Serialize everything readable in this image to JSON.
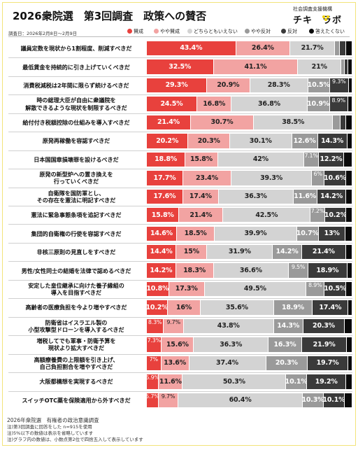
{
  "header": {
    "title": "2026衆院選　第3回調査　政策への賛否",
    "survey_date": "調査日：2026年2月8日〜2月9日",
    "brand_top": "社会調査支援機構",
    "brand_logo": "チキ　ラボ"
  },
  "colors": {
    "brand_dots": "#f0d000",
    "background": "#ffffff"
  },
  "chart_data": {
    "type": "bar",
    "orientation": "horizontal",
    "stacked": true,
    "xlim": [
      0,
      100
    ],
    "legend_position": "top",
    "series": [
      {
        "name": "賛成",
        "color": "#e8413d"
      },
      {
        "name": "やや賛成",
        "color": "#f2a3a2"
      },
      {
        "name": "どちらともいえない",
        "color": "#d3d3d3"
      },
      {
        "name": "やや反対",
        "color": "#9a9a9a"
      },
      {
        "name": "反対",
        "color": "#3a3a3a"
      },
      {
        "name": "答えたくない",
        "color": "#0a0a0a"
      }
    ],
    "categories": [
      {
        "label": "議員定数を現状から1割程度、削減すべきだ",
        "values": [
          43.4,
          26.4,
          21.7,
          2.5,
          2.8,
          3.2
        ],
        "shown": [
          "43.4%",
          "26.4%",
          "21.7%",
          "",
          "",
          ""
        ]
      },
      {
        "label": "最低賃金を持続的に引き上げていくべきだ",
        "values": [
          32.5,
          41.1,
          21,
          1.8,
          1.6,
          2
        ],
        "shown": [
          "32.5%",
          "41.1%",
          "21%",
          "",
          "",
          ""
        ]
      },
      {
        "label": "消費税減税は2年間に限らず続けるべきだ",
        "values": [
          29.3,
          20.9,
          28.3,
          10.5,
          9.3,
          1.7
        ],
        "shown": [
          "29.3%",
          "20.9%",
          "28.3%",
          "10.5%",
          "9.3%",
          ""
        ]
      },
      {
        "label": "時の総理大臣が自由に衆議院を\n解散できるような現状を制限するべきだ",
        "values": [
          24.5,
          16.8,
          36.8,
          10.9,
          8.9,
          2.1
        ],
        "shown": [
          "24.5%",
          "16.8%",
          "36.8%",
          "10.9%",
          "8.9%",
          ""
        ]
      },
      {
        "label": "給付付き税額控除の仕組みを導入すべきだ",
        "values": [
          21.4,
          30.7,
          38.5,
          3.6,
          2.8,
          3
        ],
        "shown": [
          "21.4%",
          "30.7%",
          "38.5%",
          "",
          "",
          ""
        ]
      },
      {
        "label": "原発再稼働を容認すべきだ",
        "values": [
          20.2,
          20.3,
          30.1,
          12.6,
          14.3,
          2.5
        ],
        "shown": [
          "20.2%",
          "20.3%",
          "30.1%",
          "12.6%",
          "14.3%",
          ""
        ]
      },
      {
        "label": "日本国国章損壊罪を設けるべきだ",
        "values": [
          18.8,
          15.8,
          42,
          7.1,
          12.2,
          4.1
        ],
        "shown": [
          "18.8%",
          "15.8%",
          "42%",
          "7.1%",
          "12.2%",
          ""
        ]
      },
      {
        "label": "原発の新型炉への置き換えを\n行っていくべきだ",
        "values": [
          17.7,
          23.4,
          39.3,
          6,
          10.6,
          3
        ],
        "shown": [
          "17.7%",
          "23.4%",
          "39.3%",
          "6%",
          "10.6%",
          ""
        ]
      },
      {
        "label": "自衛隊を国防軍とし、\nその存在を憲法に明記すべきだ",
        "values": [
          17.6,
          17.4,
          36.3,
          11.6,
          14.2,
          2.9
        ],
        "shown": [
          "17.6%",
          "17.4%",
          "36.3%",
          "11.6%",
          "14.2%",
          ""
        ]
      },
      {
        "label": "憲法に緊急事態条項を追記すべきだ",
        "values": [
          15.8,
          21.4,
          42.5,
          7.2,
          10.2,
          2.9
        ],
        "shown": [
          "15.8%",
          "21.4%",
          "42.5%",
          "7.2%",
          "10.2%",
          ""
        ]
      },
      {
        "label": "集団的自衛権の行使を容認すべきだ",
        "values": [
          14.6,
          18.5,
          39.9,
          10.7,
          13,
          3.3
        ],
        "shown": [
          "14.6%",
          "18.5%",
          "39.9%",
          "10.7%",
          "13%",
          ""
        ]
      },
      {
        "label": "非核三原則の見直しをすべきだ",
        "values": [
          14.4,
          15,
          31.9,
          14.2,
          21.4,
          3.1
        ],
        "shown": [
          "14.4%",
          "15%",
          "31.9%",
          "14.2%",
          "21.4%",
          ""
        ]
      },
      {
        "label": "男性/女性同士の結婚を法律で認めるべきだ",
        "values": [
          14.2,
          18.3,
          36.6,
          9.5,
          18.9,
          2.5
        ],
        "shown": [
          "14.2%",
          "18.3%",
          "36.6%",
          "9.5%",
          "18.9%",
          ""
        ]
      },
      {
        "label": "安定した皇位継承に向けた養子縁組の\n導入を目指すべきだ",
        "values": [
          10.8,
          17.3,
          49.5,
          8.9,
          10.5,
          3
        ],
        "shown": [
          "10.8%",
          "17.3%",
          "49.5%",
          "8.9%",
          "10.5%",
          ""
        ]
      },
      {
        "label": "高齢者の医療負担を今より増やすべきだ",
        "values": [
          10.2,
          16,
          35.6,
          18.9,
          17.4,
          1.9
        ],
        "shown": [
          "10.2%",
          "16%",
          "35.6%",
          "18.9%",
          "17.4%",
          ""
        ]
      },
      {
        "label": "防衛省はイスラエル製の\n小型攻撃型ドローンを導入するべきだ",
        "values": [
          8.3,
          9.7,
          43.8,
          14.3,
          20.3,
          3.6
        ],
        "shown": [
          "8.3%",
          "9.7%",
          "43.8%",
          "14.3%",
          "20.3%",
          ""
        ]
      },
      {
        "label": "増税してでも軍事・防衛予算を\n現状より拡大すべきだ",
        "values": [
          7.3,
          15.6,
          36.3,
          16.3,
          21.9,
          2.6
        ],
        "shown": [
          "7.3%",
          "15.6%",
          "36.3%",
          "16.3%",
          "21.9%",
          ""
        ]
      },
      {
        "label": "高額療養費の上限額を引き上げ、\n自己負担割合を増やすべきだ",
        "values": [
          7,
          13.6,
          37.4,
          20.3,
          19.7,
          2
        ],
        "shown": [
          "7%",
          "13.6%",
          "37.4%",
          "20.3%",
          "19.7%",
          ""
        ]
      },
      {
        "label": "大阪都構想を実現するべきだ",
        "values": [
          5.9,
          11.6,
          50.3,
          10.1,
          19.2,
          2.9
        ],
        "shown": [
          "5.9%",
          "11.6%",
          "50.3%",
          "10.1%",
          "19.2%",
          ""
        ]
      },
      {
        "label": "スイッチOTC薬を保険適用から外すべきだ",
        "values": [
          5.7,
          9.7,
          60.4,
          10.3,
          10.1,
          3.8
        ],
        "shown": [
          "5.7%",
          "9.7%",
          "60.4%",
          "10.3%",
          "10.1%",
          ""
        ]
      }
    ]
  },
  "footer": {
    "line1": "2026年衆院選　有権者の政治意識調査",
    "line2": "注)第3回調査に回答をした n=915を使用",
    "line3": "注)5%以下の数値は表示を省略しています",
    "line4": "注)グラフ内の数値は、小数点第2位で四捨五入して表示しています"
  }
}
